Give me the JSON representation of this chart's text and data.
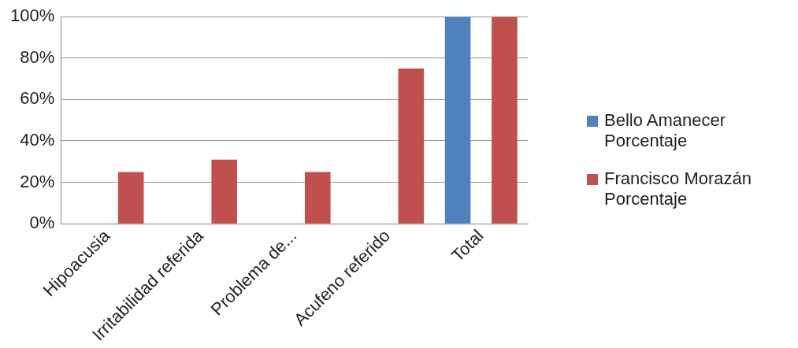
{
  "chart_data": {
    "type": "bar",
    "categories": [
      "Hipoacusia",
      "Irritabilidad referida",
      "Problema de...",
      "Acufeno referido",
      "Total"
    ],
    "series": [
      {
        "name": "Bello Amanecer Porcentaje",
        "color": "#4f81bd",
        "values": [
          0,
          0,
          0,
          0,
          100
        ]
      },
      {
        "name": "Francisco Morazán Porcentaje",
        "color": "#c0504d",
        "values": [
          25,
          31,
          25,
          75,
          100
        ]
      }
    ],
    "ylim": [
      0,
      100
    ],
    "yticks": [
      {
        "value": 0,
        "label": "0%"
      },
      {
        "value": 20,
        "label": "20%"
      },
      {
        "value": 40,
        "label": "40%"
      },
      {
        "value": 60,
        "label": "60%"
      },
      {
        "value": 80,
        "label": "80%"
      },
      {
        "value": 100,
        "label": "100%"
      }
    ],
    "grid": "y",
    "legend": "right"
  }
}
